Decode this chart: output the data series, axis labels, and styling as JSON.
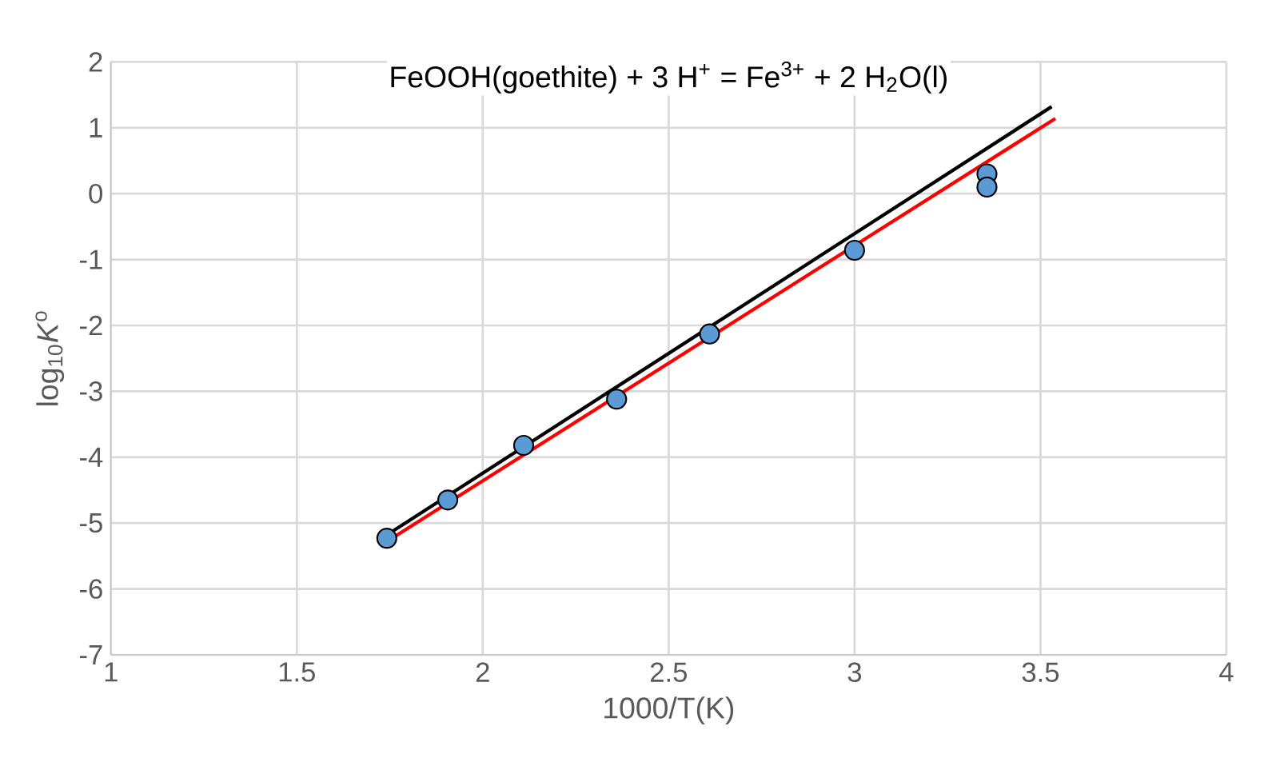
{
  "chart_data": {
    "type": "scatter",
    "title": "FeOOH(goethite) + 3 H$^{+}$ = Fe$^{3+}$ + 2 H$_{2}$O(l)",
    "xlabel": "1000/T(K)",
    "ylabel": "log$_{10}$*K*$^{o}$",
    "xlim": [
      1,
      4
    ],
    "xticks": [
      1,
      1.5,
      2,
      2.5,
      3,
      3.5,
      4
    ],
    "ylim": [
      -7,
      2
    ],
    "yticks": [
      -7,
      -6,
      -5,
      -4,
      -3,
      -2,
      -1,
      0,
      1,
      2
    ],
    "grid": true,
    "series": [
      {
        "marker": "circle",
        "color": "#5b9bd5",
        "x": [
          1.742,
          1.906,
          2.11,
          2.36,
          2.61,
          3.0,
          3.356,
          3.356
        ],
        "values": [
          -5.23,
          -4.65,
          -3.82,
          -3.12,
          -2.13,
          -0.86,
          0.3,
          0.1
        ]
      },
      {
        "type": "line",
        "marker": "none",
        "color": "#000000",
        "x": [
          1.742,
          3.53
        ],
        "values": [
          -5.18,
          1.32
        ]
      },
      {
        "type": "line",
        "marker": "none",
        "color": "#ff0000",
        "x": [
          1.742,
          3.54
        ],
        "values": [
          -5.28,
          1.14
        ]
      }
    ]
  }
}
